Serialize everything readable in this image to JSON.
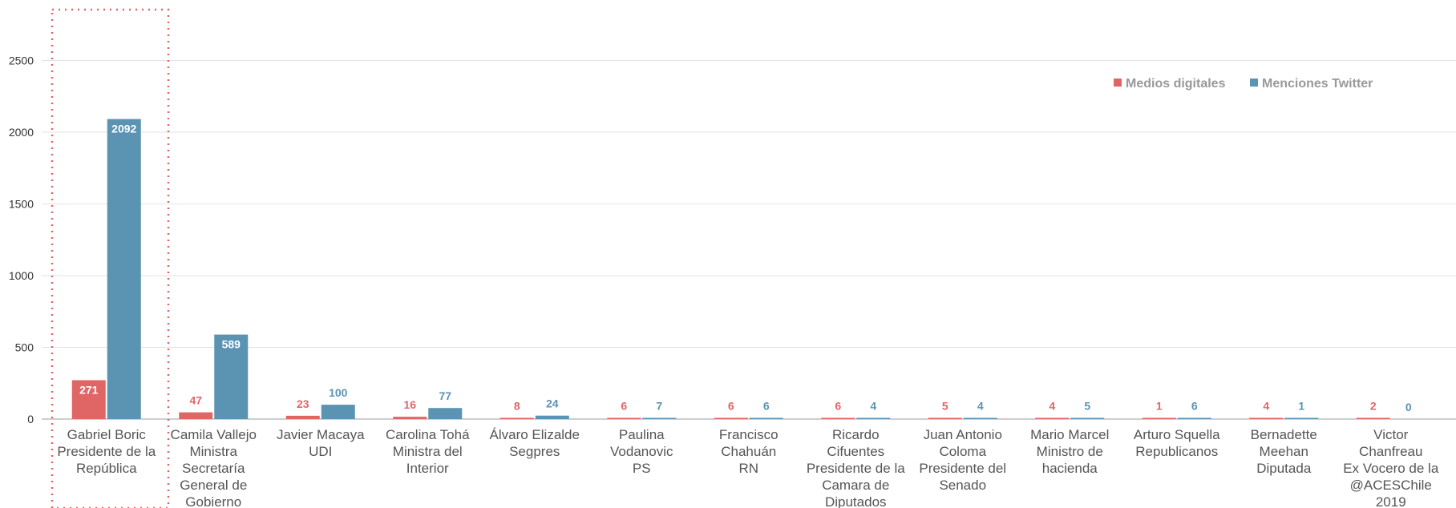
{
  "chart_data": {
    "type": "bar",
    "title": "",
    "xlabel": "",
    "ylabel": "",
    "ylim": [
      0,
      2750
    ],
    "yticks": [
      0,
      500,
      1000,
      1500,
      2000,
      2500
    ],
    "grid": true,
    "legend_position": "top-right",
    "categories": [
      "Gabriel Boric\nPresidente de la\nRepública",
      "Camila Vallejo\nMinistra\nSecretaría\nGeneral de\nGobierno",
      "Javier Macaya\nUDI",
      "Carolina Tohá\nMinistra del\nInterior",
      "Álvaro Elizalde\nSegpres",
      "Paulina\nVodanovic\nPS",
      "Francisco\nChahuán\nRN",
      "Ricardo\nCifuentes\nPresidente de la\nCamara de\nDiputados",
      "Juan Antonio\nColoma\nPresidente del\nSenado",
      "Mario Marcel\nMinistro de\nhacienda",
      "Arturo Squella\nRepublicanos",
      "Bernadette\nMeehan\nDiputada",
      "Victor\nChanfreau\nEx Vocero de la\n@ACESChile\n2019"
    ],
    "series": [
      {
        "name": "Medios digitales",
        "color": "#e06666",
        "values": [
          271,
          47,
          23,
          16,
          8,
          6,
          6,
          6,
          5,
          4,
          1,
          4,
          2
        ]
      },
      {
        "name": "Menciones Twitter",
        "color": "#5b93b3",
        "values": [
          2092,
          589,
          100,
          77,
          24,
          7,
          6,
          4,
          4,
          5,
          6,
          1,
          0
        ]
      }
    ],
    "highlight_category_index": 0,
    "highlight_style": "red dotted box",
    "inside_label_color": "#ffffff"
  }
}
